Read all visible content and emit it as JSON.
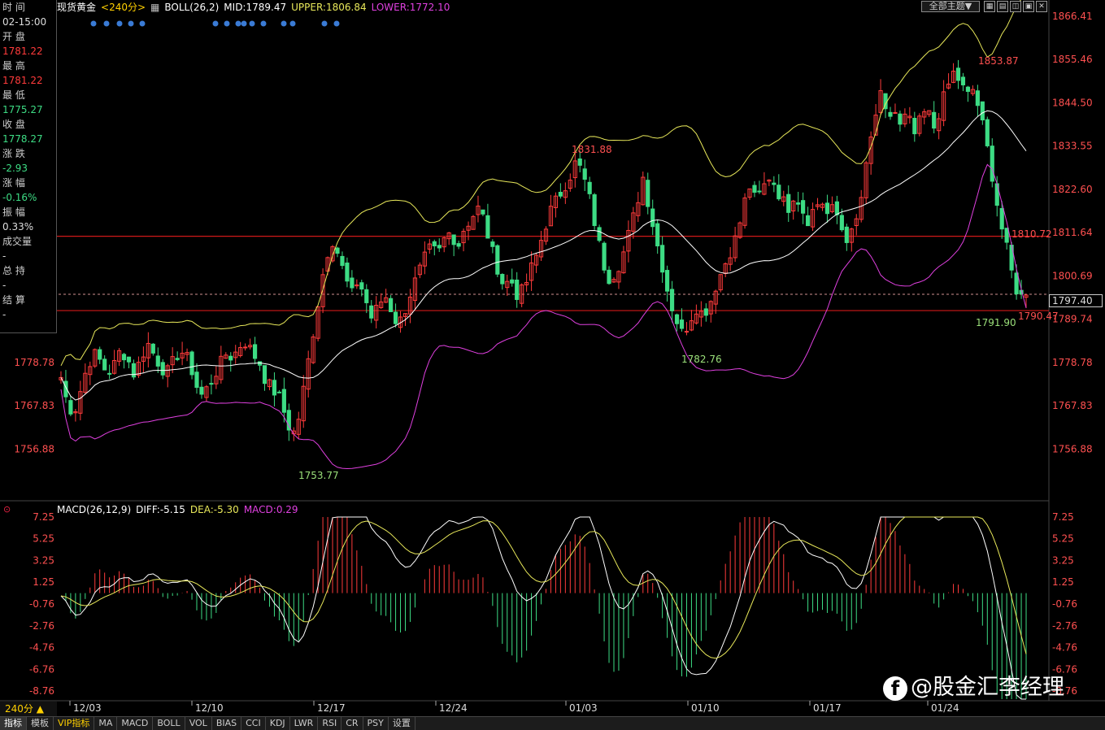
{
  "header": {
    "symbol": "现货黄金",
    "period": "<240分>",
    "indicator": "BOLL(26,2)",
    "mid": "MID:1789.47",
    "upper": "UPPER:1806.84",
    "lower": "LOWER:1772.10"
  },
  "toolbar": {
    "theme_label": "全部主题▼"
  },
  "info_panel": {
    "time_label": "时 间",
    "time_value": "02-15:00",
    "open_label": "开 盘",
    "open_value": "1781.22",
    "high_label": "最 高",
    "high_value": "1781.22",
    "low_label": "最 低",
    "low_value": "1775.27",
    "close_label": "收 盘",
    "close_value": "1778.27",
    "change_label": "涨 跌",
    "change_value": "-2.93",
    "pct_label": "涨 幅",
    "pct_value": "-0.16%",
    "amp_label": "振 幅",
    "amp_value": "0.33%",
    "volume_label": "成交量",
    "volume_value": "-",
    "oi_label": "总 持",
    "oi_value": "-",
    "settle_label": "结 算",
    "settle_value": "-"
  },
  "macd": {
    "title": "MACD(26,12,9)",
    "diff": "DIFF:-5.15",
    "dea": "DEA:-5.30",
    "macd": "MACD:0.29"
  },
  "current_price": "1797.40",
  "period_selector": "240分 ▲",
  "tabs": [
    "指标",
    "模板",
    "VIP指标",
    "MA",
    "MACD",
    "BOLL",
    "VOL",
    "BIAS",
    "CCI",
    "KDJ",
    "LWR",
    "RSI",
    "CR",
    "PSY",
    "设置"
  ],
  "watermark": "@股金汇李经理",
  "colors": {
    "up": "#ff3b3b",
    "down": "#3ddc84",
    "mid": "#ffffff",
    "upper": "#e8e85a",
    "lower": "#e040e0",
    "hline": "#d01818"
  },
  "chart_data": [
    {
      "type": "candlestick",
      "yaxis_right": [
        "1866.41",
        "1855.46",
        "1844.50",
        "1833.55",
        "1822.60",
        "1811.64",
        "1800.69",
        "1789.74"
      ],
      "yaxis_left": [
        "1778.78",
        "1767.83",
        "1756.88"
      ],
      "xaxis": [
        "12/03",
        "12/10",
        "12/17",
        "12/24",
        "01/03",
        "01/10",
        "01/17",
        "01/24"
      ],
      "annotations": [
        "1853.87",
        "1831.88",
        "1810.72",
        "1791.90",
        "1790.47",
        "1782.76",
        "1753.77"
      ],
      "horizontal_lines": [
        1810.72,
        1791.9
      ],
      "close_series": [
        1775,
        1768,
        1766,
        1772,
        1778,
        1781,
        1779,
        1776,
        1778,
        1782,
        1780,
        1776,
        1779,
        1784,
        1781,
        1778,
        1776,
        1779,
        1782,
        1780,
        1776,
        1770,
        1772,
        1775,
        1778,
        1781,
        1780,
        1783,
        1784,
        1781,
        1779,
        1774,
        1772,
        1770,
        1765,
        1760,
        1765,
        1775,
        1785,
        1795,
        1805,
        1810,
        1806,
        1800,
        1796,
        1800,
        1795,
        1790,
        1793,
        1796,
        1792,
        1788,
        1792,
        1797,
        1801,
        1805,
        1808,
        1806,
        1810,
        1812,
        1808,
        1813,
        1815,
        1818,
        1815,
        1808,
        1803,
        1798,
        1800,
        1796,
        1797,
        1802,
        1806,
        1812,
        1817,
        1820,
        1823,
        1826,
        1830,
        1826,
        1820,
        1812,
        1804,
        1800,
        1802,
        1806,
        1812,
        1818,
        1826,
        1818,
        1810,
        1803,
        1795,
        1790,
        1786,
        1789,
        1793,
        1791,
        1793,
        1798,
        1802,
        1806,
        1810,
        1816,
        1824,
        1820,
        1822,
        1826,
        1824,
        1820,
        1818,
        1822,
        1818,
        1815,
        1818,
        1820,
        1816,
        1818,
        1813,
        1810,
        1812,
        1820,
        1830,
        1840,
        1846,
        1840,
        1843,
        1838,
        1842,
        1836,
        1840,
        1843,
        1838,
        1843,
        1848,
        1852,
        1850,
        1846,
        1848,
        1842,
        1834,
        1825,
        1815,
        1808,
        1800,
        1795,
        1797
      ]
    },
    {
      "type": "bar",
      "name": "MACD(26,12,9)",
      "yaxis": [
        "7.25",
        "5.25",
        "3.25",
        "1.25",
        "-0.76",
        "-2.76",
        "-4.76",
        "-6.76",
        "-8.76"
      ]
    }
  ]
}
